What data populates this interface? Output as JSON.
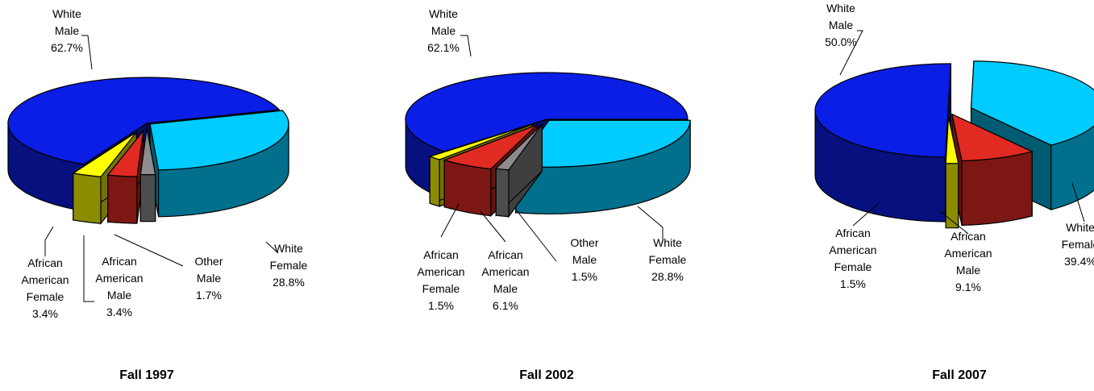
{
  "colors": {
    "white_male": "#0A1EE6",
    "white_female": "#00CCFF",
    "african_american_male": "#E12A22",
    "african_american_female": "#FFFF00",
    "other_male": "#8C8C8C"
  },
  "chart_data": [
    {
      "type": "pie",
      "title": "Fall 1997",
      "slices": [
        {
          "label_lines": [
            "White",
            "Female",
            "28.8%"
          ],
          "value": 28.8,
          "color_key": "white_female"
        },
        {
          "label_lines": [
            "Other",
            "Male",
            "1.7%"
          ],
          "value": 1.7,
          "color_key": "other_male"
        },
        {
          "label_lines": [
            "African",
            "American",
            "Male",
            "3.4%"
          ],
          "value": 3.4,
          "color_key": "african_american_male"
        },
        {
          "label_lines": [
            "African",
            "American",
            "Female",
            "3.4%"
          ],
          "value": 3.4,
          "color_key": "african_american_female"
        },
        {
          "label_lines": [
            "White",
            "Male",
            "62.7%"
          ],
          "value": 62.7,
          "color_key": "white_male"
        }
      ]
    },
    {
      "type": "pie",
      "title": "Fall 2002",
      "slices": [
        {
          "label_lines": [
            "White",
            "Female",
            "28.8%"
          ],
          "value": 28.8,
          "color_key": "white_female"
        },
        {
          "label_lines": [
            "Other",
            "Male",
            "1.5%"
          ],
          "value": 1.5,
          "color_key": "other_male"
        },
        {
          "label_lines": [
            "African",
            "American",
            "Male",
            "6.1%"
          ],
          "value": 6.1,
          "color_key": "african_american_male"
        },
        {
          "label_lines": [
            "African",
            "American",
            "Female",
            "1.5%"
          ],
          "value": 1.5,
          "color_key": "african_american_female"
        },
        {
          "label_lines": [
            "White",
            "Male",
            "62.1%"
          ],
          "value": 62.1,
          "color_key": "white_male"
        }
      ]
    },
    {
      "type": "pie",
      "title": "Fall 2007",
      "slices": [
        {
          "label_lines": [
            "White",
            "Female",
            "39.4%"
          ],
          "value": 39.4,
          "color_key": "white_female"
        },
        {
          "label_lines": [
            "African",
            "American",
            "Male",
            "9.1%"
          ],
          "value": 9.1,
          "color_key": "african_american_male"
        },
        {
          "label_lines": [
            "African",
            "American",
            "Female",
            "1.5%"
          ],
          "value": 1.5,
          "color_key": "african_american_female"
        },
        {
          "label_lines": [
            "White",
            "Male",
            "50.0%"
          ],
          "value": 50.0,
          "color_key": "white_male"
        }
      ]
    }
  ]
}
